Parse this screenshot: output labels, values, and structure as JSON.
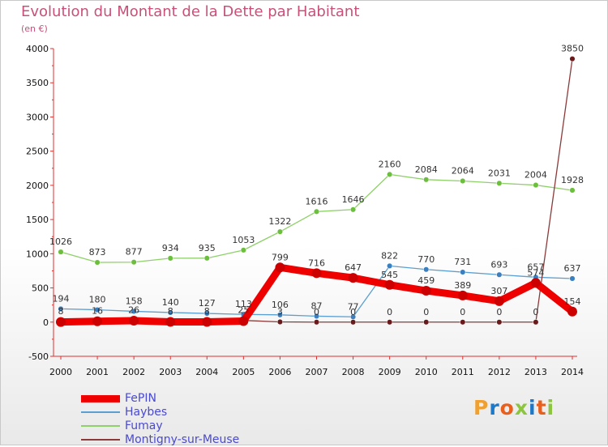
{
  "title": "Evolution du Montant de la Dette par Habitant",
  "subtitle": "(en €)",
  "logo": {
    "letters": [
      "P",
      "r",
      "o",
      "x",
      "i",
      "t",
      "i"
    ],
    "colors": [
      "#f0a030",
      "#1e78c8",
      "#e8601c",
      "#8cc63f",
      "#1e78c8",
      "#e8601c",
      "#8cc63f"
    ]
  },
  "chart_data": {
    "type": "line",
    "x": [
      2000,
      2001,
      2002,
      2003,
      2004,
      2005,
      2006,
      2007,
      2008,
      2009,
      2010,
      2011,
      2012,
      2013,
      2014
    ],
    "ylim": [
      -500,
      4000
    ],
    "yticks": [
      -500,
      0,
      500,
      1000,
      1500,
      2000,
      2500,
      3000,
      3500,
      4000
    ],
    "legend_position": "bottom-left",
    "grid": false,
    "series": [
      {
        "name": "Fumay",
        "color": "#8fd06a",
        "marker": "#6cbf3c",
        "width": 1.3,
        "values": [
          1026,
          873,
          877,
          934,
          935,
          1053,
          1322,
          1616,
          1646,
          2160,
          2084,
          2064,
          2031,
          2004,
          1928
        ],
        "labels": [
          "1026",
          "873",
          "877",
          "934",
          "935",
          "1053",
          "1322",
          "1616",
          "1646",
          "2160",
          "2084",
          "2064",
          "2031",
          "2004",
          "1928"
        ]
      },
      {
        "name": "Haybes",
        "color": "#5a9fd0",
        "marker": "#3a7fc0",
        "width": 1.3,
        "values": [
          194,
          180,
          158,
          140,
          127,
          113,
          106,
          87,
          77,
          822,
          770,
          731,
          693,
          657,
          637
        ],
        "labels": [
          "194",
          "180",
          "158",
          "140",
          "127",
          "113",
          "106",
          "87",
          "77",
          "822",
          "770",
          "731",
          "693",
          "657",
          "637"
        ]
      },
      {
        "name": "Montigny-sur-Meuse",
        "color": "#8b3a3a",
        "marker": "#6a1a1a",
        "width": 1.3,
        "values": [
          8,
          16,
          26,
          8,
          8,
          25,
          3,
          0,
          0,
          0,
          0,
          0,
          0,
          0,
          3850
        ],
        "labels": [
          "8",
          "16",
          "26",
          "8",
          "8",
          "25",
          "3",
          "0",
          "0",
          "0",
          "0",
          "0",
          "0",
          "0",
          "3850"
        ]
      },
      {
        "name": "FePIN",
        "color": "#ee0000",
        "marker": "#cc0000",
        "width": 9,
        "values": [
          2,
          12,
          21,
          4,
          3,
          15,
          799,
          716,
          647,
          545,
          459,
          389,
          307,
          574,
          154
        ],
        "labels": [
          "",
          "",
          "",
          "",
          "",
          "",
          "799",
          "716",
          "647",
          "545",
          "459",
          "389",
          "307",
          "574",
          "154"
        ]
      }
    ],
    "legend_order": [
      "FePIN",
      "Haybes",
      "Fumay",
      "Montigny-sur-Meuse"
    ]
  }
}
